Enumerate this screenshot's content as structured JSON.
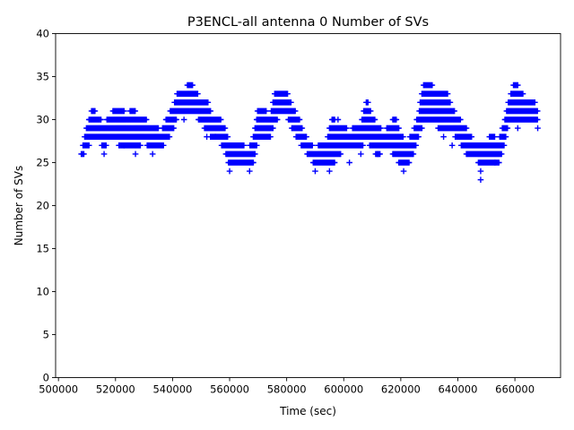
{
  "chart_data": {
    "type": "scatter",
    "title": "P3ENCL-all antenna 0 Number of SVs",
    "xlabel": "Time (sec)",
    "ylabel": "Number of SVs",
    "xlim": [
      499000,
      676000
    ],
    "ylim": [
      0,
      40
    ],
    "x_ticks": [
      500000,
      520000,
      540000,
      560000,
      580000,
      600000,
      620000,
      640000,
      660000
    ],
    "x_tick_labels": [
      "500000",
      "520000",
      "540000",
      "560000",
      "580000",
      "600000",
      "620000",
      "640000",
      "660000"
    ],
    "y_ticks": [
      0,
      5,
      10,
      15,
      20,
      25,
      30,
      35,
      40
    ],
    "y_tick_labels": [
      "0",
      "5",
      "10",
      "15",
      "20",
      "25",
      "30",
      "35",
      "40"
    ],
    "grid": false,
    "marker": "+",
    "color": "#0000ff",
    "x_range": [
      508000,
      668000
    ],
    "sample_interval_sec": 300,
    "envelope_x": [
      508000,
      510000,
      512000,
      514000,
      516000,
      518000,
      520000,
      522000,
      524000,
      526000,
      528000,
      530000,
      532000,
      534000,
      536000,
      538000,
      540000,
      542000,
      544000,
      546000,
      548000,
      550000,
      552000,
      554000,
      556000,
      558000,
      560000,
      562000,
      564000,
      566000,
      568000,
      570000,
      572000,
      574000,
      576000,
      578000,
      580000,
      582000,
      584000,
      586000,
      588000,
      590000,
      592000,
      594000,
      596000,
      598000,
      600000,
      602000,
      604000,
      606000,
      608000,
      610000,
      612000,
      614000,
      616000,
      618000,
      620000,
      622000,
      624000,
      626000,
      628000,
      630000,
      632000,
      634000,
      636000,
      638000,
      640000,
      642000,
      644000,
      646000,
      648000,
      650000,
      652000,
      654000,
      656000,
      658000,
      660000,
      662000,
      664000,
      666000,
      668000
    ],
    "envelope_min": [
      26,
      27,
      28,
      28,
      27,
      28,
      28,
      27,
      27,
      27,
      27,
      28,
      27,
      27,
      27,
      28,
      29,
      31,
      31,
      31,
      31,
      30,
      29,
      28,
      28,
      27,
      25,
      25,
      25,
      25,
      25,
      28,
      28,
      28,
      30,
      31,
      31,
      29,
      28,
      27,
      26,
      25,
      25,
      25,
      25,
      26,
      27,
      27,
      27,
      27,
      28,
      27,
      26,
      27,
      27,
      26,
      25,
      25,
      26,
      28,
      30,
      30,
      30,
      29,
      29,
      29,
      28,
      27,
      26,
      26,
      25,
      25,
      25,
      25,
      27,
      30,
      30,
      30,
      30,
      30,
      30
    ],
    "envelope_max": [
      26,
      29,
      31,
      30,
      29,
      30,
      31,
      31,
      30,
      31,
      30,
      30,
      29,
      29,
      28,
      30,
      31,
      33,
      33,
      34,
      33,
      32,
      32,
      30,
      30,
      29,
      27,
      27,
      27,
      26,
      27,
      31,
      31,
      30,
      33,
      33,
      33,
      31,
      30,
      28,
      27,
      26,
      27,
      27,
      30,
      29,
      29,
      28,
      29,
      29,
      32,
      30,
      29,
      28,
      29,
      30,
      28,
      27,
      28,
      30,
      34,
      34,
      33,
      33,
      33,
      31,
      30,
      29,
      28,
      27,
      27,
      27,
      28,
      27,
      29,
      32,
      34,
      33,
      32,
      32,
      31
    ],
    "outliers": [
      [
        516000,
        26
      ],
      [
        523000,
        27
      ],
      [
        527000,
        26
      ],
      [
        533000,
        26
      ],
      [
        544000,
        30
      ],
      [
        552000,
        28
      ],
      [
        555000,
        28
      ],
      [
        560000,
        24
      ],
      [
        567000,
        24
      ],
      [
        590000,
        24
      ],
      [
        595000,
        24
      ],
      [
        598000,
        30
      ],
      [
        602000,
        25
      ],
      [
        606000,
        26
      ],
      [
        612000,
        26
      ],
      [
        621000,
        24
      ],
      [
        635000,
        28
      ],
      [
        638000,
        27
      ],
      [
        643000,
        26
      ],
      [
        648000,
        24
      ],
      [
        648000,
        23
      ],
      [
        653000,
        25
      ],
      [
        661000,
        29
      ],
      [
        668000,
        29
      ]
    ]
  }
}
